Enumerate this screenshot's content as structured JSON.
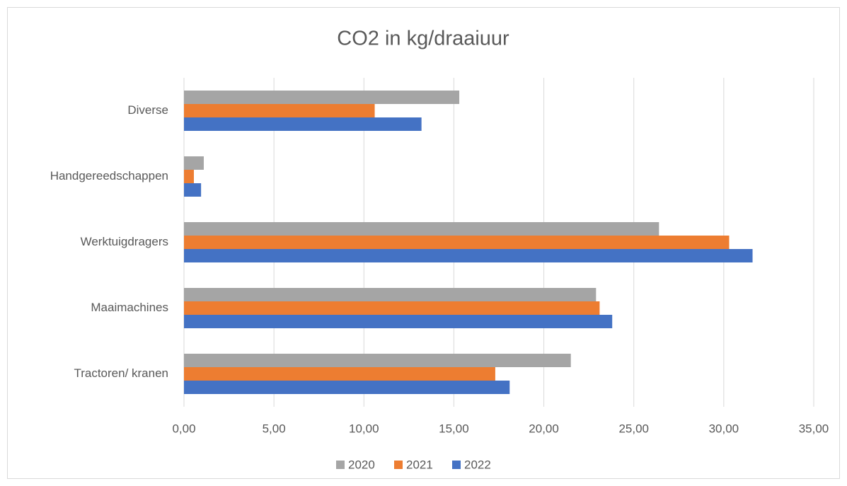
{
  "chart_data": {
    "type": "hbar",
    "title": "CO2 in kg/draaiuur",
    "categories": [
      "Diverse",
      "Handgereedschappen",
      "Werktuigdragers",
      "Maaimachines",
      "Tractoren/ kranen"
    ],
    "series": [
      {
        "name": "2020",
        "color": "#a5a5a5",
        "values": [
          15.3,
          1.1,
          26.4,
          22.9,
          21.5
        ]
      },
      {
        "name": "2021",
        "color": "#ed7d31",
        "values": [
          10.6,
          0.55,
          30.3,
          23.1,
          17.3
        ]
      },
      {
        "name": "2022",
        "color": "#4472c4",
        "values": [
          13.2,
          0.95,
          31.6,
          23.8,
          18.1
        ]
      }
    ],
    "xlim": [
      0,
      35
    ],
    "xticks": [
      {
        "value": 0,
        "label": "0,00"
      },
      {
        "value": 5,
        "label": "5,00"
      },
      {
        "value": 10,
        "label": "10,00"
      },
      {
        "value": 15,
        "label": "15,00"
      },
      {
        "value": 20,
        "label": "20,00"
      },
      {
        "value": 25,
        "label": "25,00"
      },
      {
        "value": 30,
        "label": "30,00"
      },
      {
        "value": 35,
        "label": "35,00"
      }
    ],
    "grid": true,
    "legend": "bottom"
  }
}
